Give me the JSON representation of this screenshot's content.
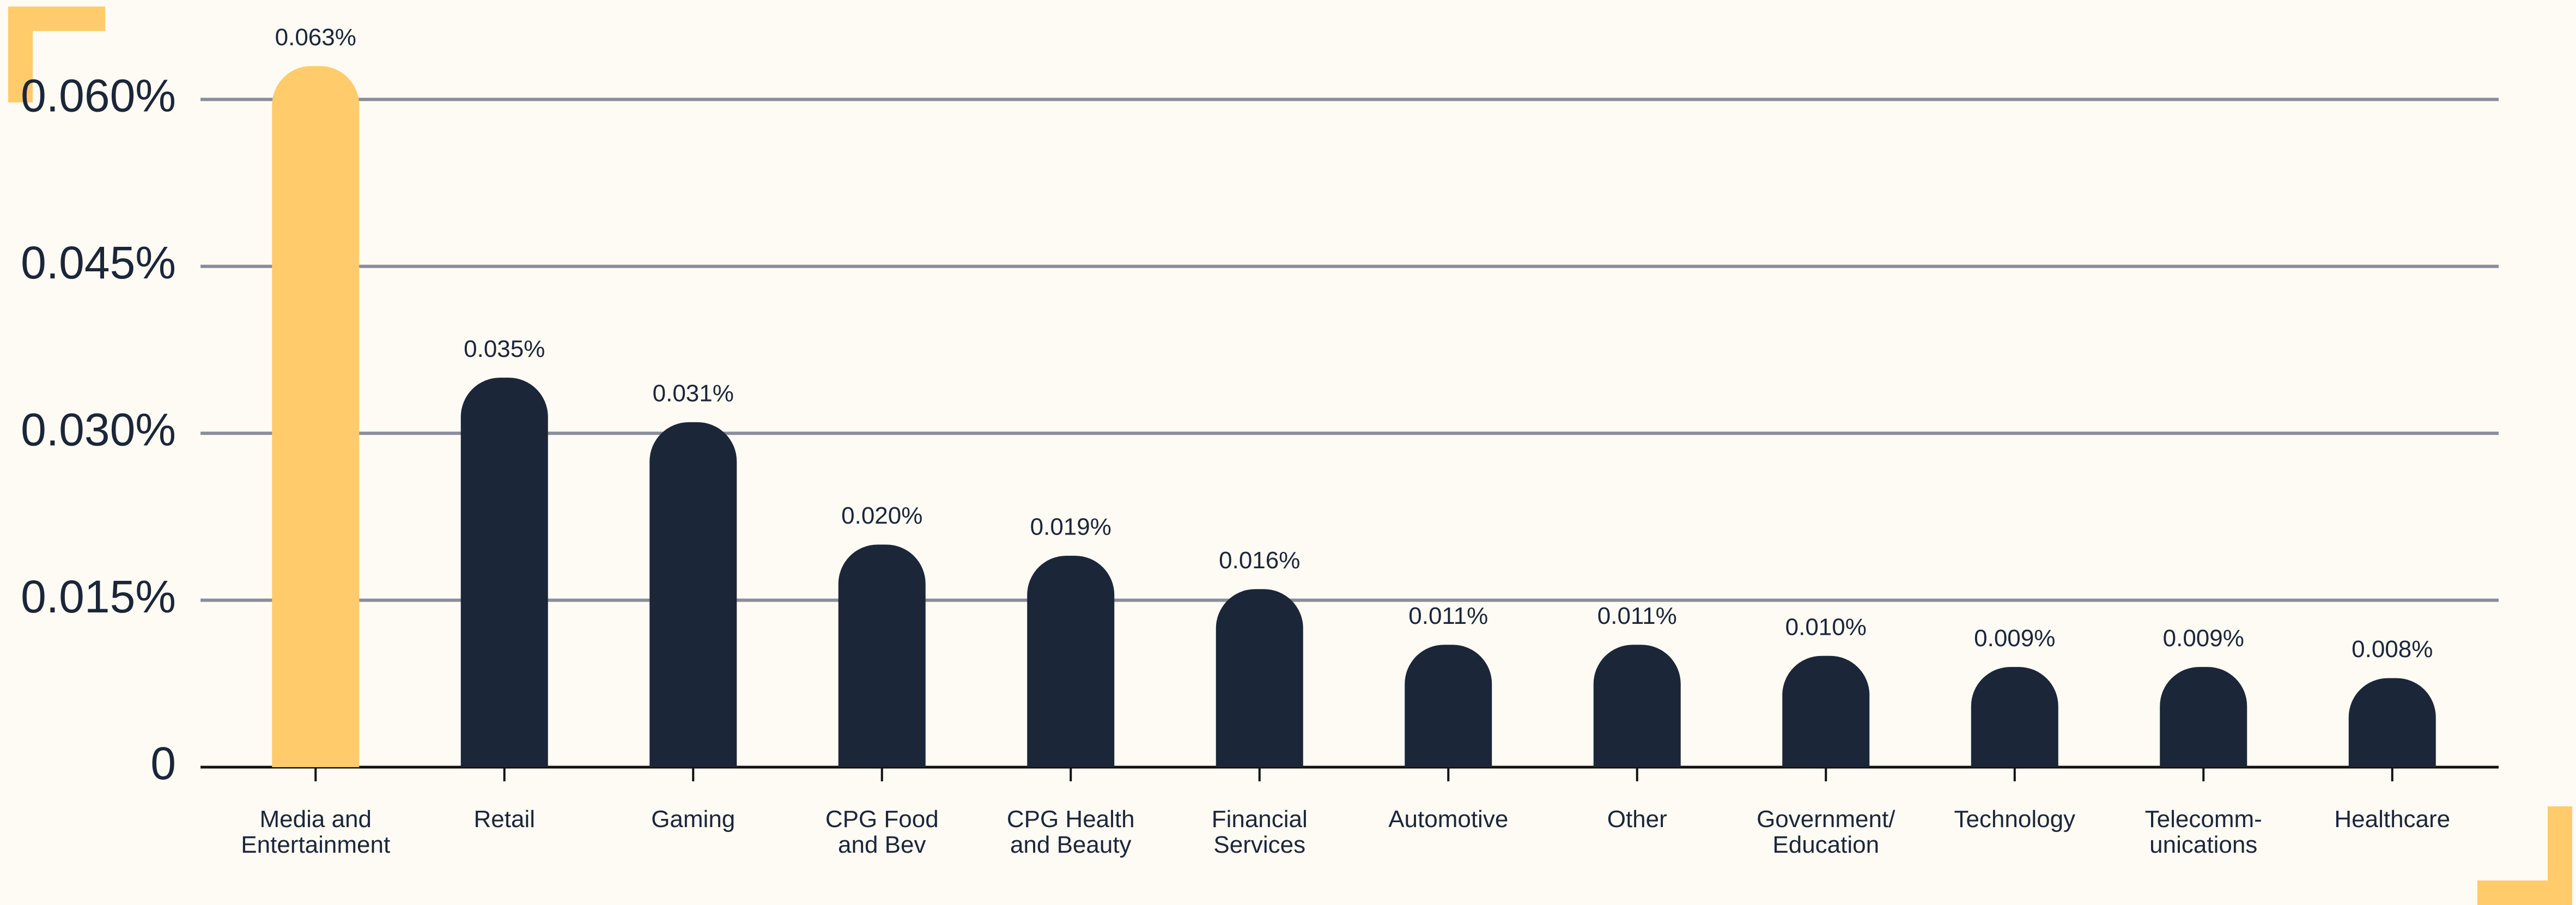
{
  "chart_data": {
    "type": "bar",
    "categories": [
      "Media and\nEntertainment",
      "Retail",
      "Gaming",
      "CPG Food\nand Bev",
      "CPG Health\nand Beauty",
      "Financial\nServices",
      "Automotive",
      "Other",
      "Government/\nEducation",
      "Technology",
      "Telecomm-\nunications",
      "Healthcare"
    ],
    "values": [
      0.063,
      0.035,
      0.031,
      0.02,
      0.019,
      0.016,
      0.011,
      0.011,
      0.01,
      0.009,
      0.009,
      0.008
    ],
    "value_labels": [
      "0.063%",
      "0.035%",
      "0.031%",
      "0.020%",
      "0.019%",
      "0.016%",
      "0.011%",
      "0.011%",
      "0.010%",
      "0.009%",
      "0.009%",
      "0.008%"
    ],
    "colors": [
      "#ffcb6b",
      "#1b2639",
      "#1b2639",
      "#1b2639",
      "#1b2639",
      "#1b2639",
      "#1b2639",
      "#1b2639",
      "#1b2639",
      "#1b2639",
      "#1b2639",
      "#1b2639"
    ],
    "ylim": [
      0,
      0.066
    ],
    "yticks": [
      0,
      {
        "value": 0.015,
        "label": "0.015%"
      },
      {
        "value": 0.03,
        "label": "0.030%"
      },
      {
        "value": 0.045,
        "label": "0.045%"
      },
      {
        "value": 0.06,
        "label": "0.060%"
      }
    ],
    "grid": true
  }
}
